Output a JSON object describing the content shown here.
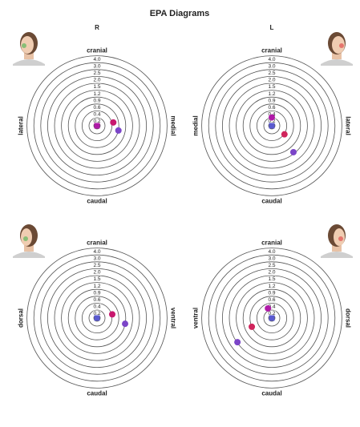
{
  "title": "EPA Diagrams",
  "chart_data": [
    {
      "type": "target",
      "subtitle": "R",
      "labels": {
        "top": "cranial",
        "bottom": "caudal",
        "left": "lateral",
        "right": "medial"
      },
      "rticks": [
        0.2,
        0.4,
        0.6,
        0.9,
        1.2,
        1.5,
        {
          "value": 2,
          "label": "2.0"
        },
        2.5,
        {
          "value": 3,
          "label": "3.0"
        },
        {
          "value": 4,
          "label": "4.0"
        }
      ],
      "series": [
        {
          "marker": "square",
          "color": "#b01aa8",
          "x": [
            0
          ],
          "y": [
            0
          ]
        },
        {
          "marker": "circle",
          "color": "#c8186e",
          "x": [
            0.44
          ],
          "y": [
            0.09
          ]
        },
        {
          "marker": "circle",
          "color": "#7b45c8",
          "x": [
            0.59
          ],
          "y": [
            -0.13
          ]
        }
      ]
    },
    {
      "type": "target",
      "subtitle": "L",
      "labels": {
        "top": "cranial",
        "bottom": "caudal",
        "left": "medial",
        "right": "lateral"
      },
      "rticks": [
        0.2,
        0.4,
        0.6,
        0.9,
        1.2,
        1.5,
        {
          "value": 2,
          "label": "2.0"
        },
        2.5,
        {
          "value": 3,
          "label": "3.0"
        },
        {
          "value": 4,
          "label": "4.0"
        }
      ],
      "series": [
        {
          "marker": "square",
          "color": "#5a5ad0",
          "x": [
            0
          ],
          "y": [
            0
          ]
        },
        {
          "marker": "circle",
          "color": "#b01aa8",
          "x": [
            0
          ],
          "y": [
            0.21
          ]
        },
        {
          "marker": "circle",
          "color": "#d0245c",
          "x": [
            0.34
          ],
          "y": [
            -0.23
          ]
        },
        {
          "marker": "circle",
          "color": "#7b45c8",
          "x": [
            0.72
          ],
          "y": [
            -0.88
          ]
        }
      ]
    },
    {
      "type": "target",
      "labels": {
        "top": "cranial",
        "bottom": "caudal",
        "left": "dorsal",
        "right": "ventral"
      },
      "rticks": [
        0.2,
        0.4,
        0.6,
        0.9,
        1.2,
        1.5,
        {
          "value": 2,
          "label": "2.0"
        },
        2.5,
        {
          "value": 3,
          "label": "3.0"
        },
        {
          "value": 4,
          "label": "4.0"
        }
      ],
      "series": [
        {
          "marker": "square",
          "color": "#5a5ad0",
          "x": [
            0
          ],
          "y": [
            0
          ]
        },
        {
          "marker": "circle",
          "color": "#c8186e",
          "x": [
            0.41
          ],
          "y": [
            0.1
          ]
        },
        {
          "marker": "circle",
          "color": "#7b45c8",
          "x": [
            0.88
          ],
          "y": [
            -0.18
          ]
        }
      ]
    },
    {
      "type": "target",
      "labels": {
        "top": "cranial",
        "bottom": "caudal",
        "left": "ventral",
        "right": "dorsal"
      },
      "rticks": [
        0.2,
        0.4,
        0.6,
        0.9,
        1.2,
        1.5,
        {
          "value": 2,
          "label": "2.0"
        },
        2.5,
        {
          "value": 3,
          "label": "3.0"
        },
        {
          "value": 4,
          "label": "4.0"
        }
      ],
      "series": [
        {
          "marker": "square",
          "color": "#5a5ad0",
          "x": [
            0
          ],
          "y": [
            0
          ]
        },
        {
          "marker": "circle",
          "color": "#b01aa8",
          "x": [
            -0.1
          ],
          "y": [
            0.25
          ]
        },
        {
          "marker": "circle",
          "color": "#d0245c",
          "x": [
            -0.55
          ],
          "y": [
            -0.24
          ]
        },
        {
          "marker": "circle",
          "color": "#7b45c8",
          "x": [
            -1.21
          ],
          "y": [
            -0.85
          ]
        }
      ]
    }
  ]
}
